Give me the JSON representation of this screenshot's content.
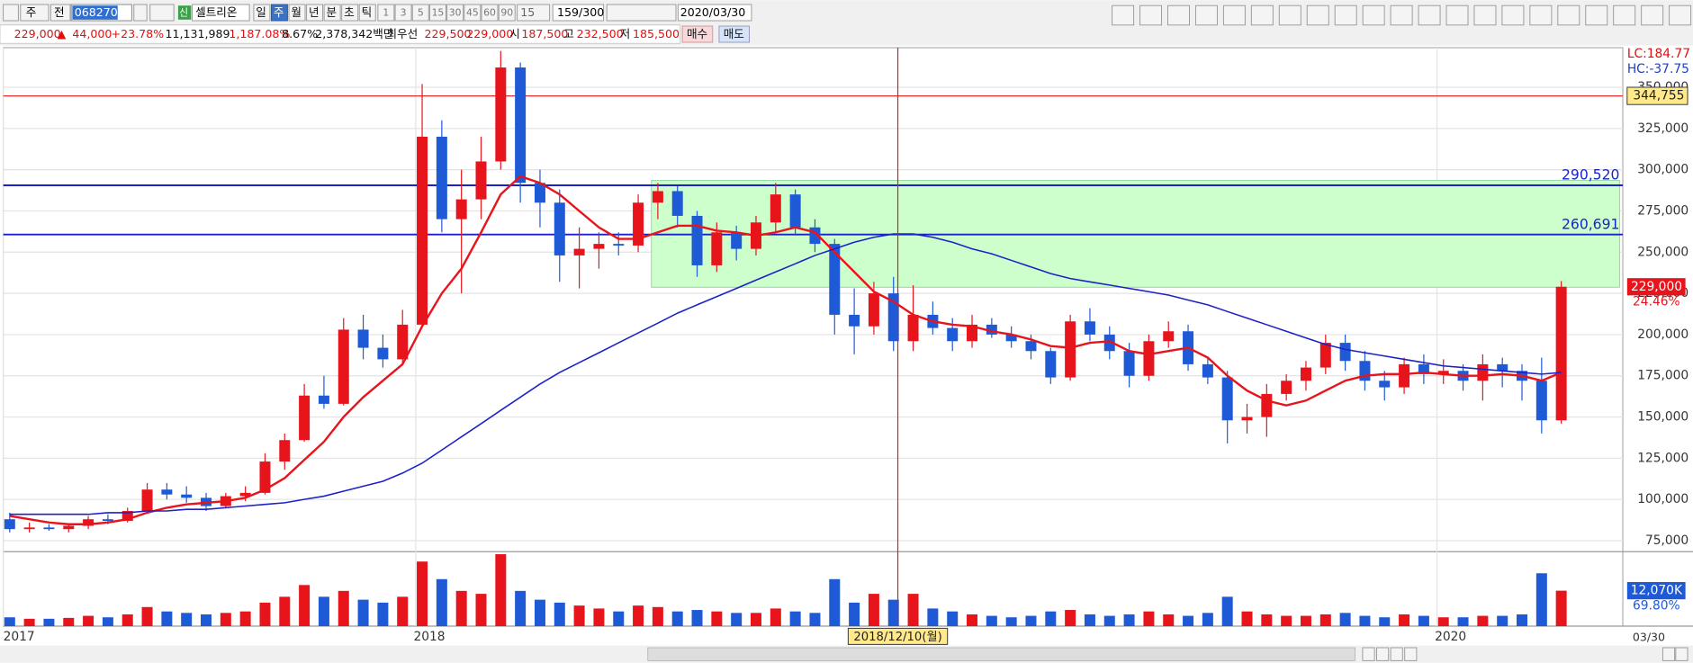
{
  "toolbar": {
    "market": "주",
    "mode": "전",
    "code": "068270",
    "badge": "신",
    "name": "셀트리온",
    "periods": [
      "일",
      "주",
      "월",
      "년",
      "분",
      "초",
      "틱"
    ],
    "intervals": [
      "1",
      "3",
      "5",
      "15",
      "30",
      "45",
      "60",
      "90"
    ],
    "interval_value": "15",
    "count": "159",
    "count_max": "/300",
    "date": "2020/03/30"
  },
  "quote": {
    "price": "229,000",
    "arrow": "▲",
    "change": "44,000",
    "change_rate": "+23.78%",
    "volume": "11,131,989",
    "volume_rate": "1,187.08%",
    "turnover": "8.67%",
    "amount": "2,378,342백만",
    "best_label": "최우선",
    "ask": "229,500",
    "bid": "229,000",
    "open_label": "시",
    "open": "187,500",
    "high_label": "고",
    "high": "232,500",
    "low_label": "저",
    "low": "185,500",
    "buy": "매수",
    "sell": "매도"
  },
  "chart_data": {
    "type": "candlestick",
    "up_color": "#e8141c",
    "down_color": "#1f5ad6",
    "categories": [
      "2017",
      null,
      null,
      null,
      null,
      null,
      null,
      null,
      null,
      null,
      null,
      null,
      null,
      null,
      null,
      null,
      null,
      null,
      null,
      null,
      null,
      "2018",
      null,
      null,
      null,
      null,
      null,
      null,
      null,
      null,
      null,
      null,
      null,
      null,
      null,
      null,
      null,
      null,
      null,
      null,
      null,
      null,
      null,
      null,
      null,
      null,
      null,
      null,
      null,
      null,
      null,
      null,
      null,
      null,
      null,
      null,
      null,
      null,
      null,
      null,
      null,
      null,
      null,
      null,
      null,
      null,
      null,
      null,
      null,
      null,
      null,
      null,
      null,
      "2020",
      null,
      null,
      null,
      null,
      null,
      null
    ],
    "candles": [
      [
        88000,
        92000,
        80000,
        82000
      ],
      [
        82000,
        86000,
        80000,
        83000
      ],
      [
        83000,
        85000,
        81000,
        82000
      ],
      [
        82000,
        85000,
        80000,
        84000
      ],
      [
        84000,
        90000,
        82000,
        88000
      ],
      [
        88000,
        91000,
        85000,
        87000
      ],
      [
        87000,
        95000,
        86000,
        93000
      ],
      [
        93000,
        110000,
        92000,
        106000
      ],
      [
        106000,
        110000,
        100000,
        103000
      ],
      [
        103000,
        108000,
        98000,
        101000
      ],
      [
        101000,
        104000,
        93000,
        96000
      ],
      [
        96000,
        104000,
        95000,
        102000
      ],
      [
        102000,
        108000,
        99000,
        104000
      ],
      [
        104000,
        128000,
        103000,
        123000
      ],
      [
        123000,
        140000,
        118000,
        136000
      ],
      [
        136000,
        170000,
        135000,
        163000
      ],
      [
        163000,
        175000,
        155000,
        158000
      ],
      [
        158000,
        210000,
        157000,
        203000
      ],
      [
        203000,
        212000,
        185000,
        192000
      ],
      [
        192000,
        200000,
        180000,
        185000
      ],
      [
        185000,
        215000,
        182000,
        206000
      ],
      [
        206000,
        352000,
        205000,
        320000
      ],
      [
        320000,
        330000,
        262000,
        270000
      ],
      [
        270000,
        300000,
        225000,
        282000
      ],
      [
        282000,
        320000,
        270000,
        305000
      ],
      [
        305000,
        372000,
        300000,
        362000
      ],
      [
        362000,
        365000,
        280000,
        292000
      ],
      [
        292000,
        300000,
        265000,
        280000
      ],
      [
        280000,
        288000,
        232000,
        248000
      ],
      [
        248000,
        265000,
        228000,
        252000
      ],
      [
        252000,
        262000,
        240000,
        255000
      ],
      [
        255000,
        262000,
        248000,
        254000
      ],
      [
        254000,
        285000,
        250000,
        280000
      ],
      [
        280000,
        292000,
        270000,
        287000
      ],
      [
        287000,
        290000,
        265000,
        272000
      ],
      [
        272000,
        275000,
        235000,
        242000
      ],
      [
        242000,
        268000,
        238000,
        262000
      ],
      [
        262000,
        266000,
        245000,
        252000
      ],
      [
        252000,
        272000,
        248000,
        268000
      ],
      [
        268000,
        292000,
        262000,
        285000
      ],
      [
        285000,
        288000,
        260000,
        265000
      ],
      [
        265000,
        270000,
        250000,
        255000
      ],
      [
        255000,
        258000,
        200000,
        212000
      ],
      [
        212000,
        228000,
        188000,
        205000
      ],
      [
        205000,
        232000,
        200000,
        225000
      ],
      [
        225000,
        235000,
        190000,
        196000
      ],
      [
        196000,
        230000,
        190000,
        212000
      ],
      [
        212000,
        220000,
        200000,
        204000
      ],
      [
        204000,
        210000,
        190000,
        196000
      ],
      [
        196000,
        212000,
        192000,
        206000
      ],
      [
        206000,
        210000,
        198000,
        200000
      ],
      [
        200000,
        205000,
        192000,
        196000
      ],
      [
        196000,
        200000,
        185000,
        190000
      ],
      [
        190000,
        192000,
        170000,
        174000
      ],
      [
        174000,
        212000,
        172000,
        208000
      ],
      [
        208000,
        216000,
        196000,
        200000
      ],
      [
        200000,
        205000,
        185000,
        190000
      ],
      [
        190000,
        195000,
        168000,
        175000
      ],
      [
        175000,
        200000,
        172000,
        196000
      ],
      [
        196000,
        208000,
        192000,
        202000
      ],
      [
        202000,
        206000,
        178000,
        182000
      ],
      [
        182000,
        186000,
        170000,
        174000
      ],
      [
        174000,
        178000,
        134000,
        148000
      ],
      [
        148000,
        158000,
        140000,
        150000
      ],
      [
        150000,
        170000,
        138000,
        164000
      ],
      [
        164000,
        176000,
        160000,
        172000
      ],
      [
        172000,
        184000,
        166000,
        180000
      ],
      [
        180000,
        200000,
        176000,
        195000
      ],
      [
        195000,
        200000,
        178000,
        184000
      ],
      [
        184000,
        190000,
        166000,
        172000
      ],
      [
        172000,
        178000,
        160000,
        168000
      ],
      [
        168000,
        186000,
        164000,
        182000
      ],
      [
        182000,
        188000,
        170000,
        176000
      ],
      [
        176000,
        185000,
        170000,
        178000
      ],
      [
        178000,
        182000,
        166000,
        172000
      ],
      [
        172000,
        188000,
        160000,
        182000
      ],
      [
        182000,
        186000,
        168000,
        178000
      ],
      [
        178000,
        182000,
        160000,
        172000
      ],
      [
        172000,
        186000,
        140000,
        148000
      ],
      [
        148000,
        232500,
        146000,
        229000
      ]
    ],
    "lines": [
      {
        "color": "#e8141c",
        "width": 2,
        "values": [
          90000,
          88000,
          86000,
          85000,
          85000,
          86000,
          88000,
          92000,
          95000,
          97000,
          98000,
          99000,
          101000,
          106000,
          113000,
          124000,
          135000,
          150000,
          162000,
          172000,
          182000,
          205000,
          225000,
          240000,
          262000,
          285000,
          296000,
          292000,
          285000,
          275000,
          265000,
          258000,
          258000,
          262000,
          266000,
          266000,
          263000,
          262000,
          260000,
          262000,
          265000,
          262000,
          250000,
          238000,
          226000,
          220000,
          212000,
          208000,
          206000,
          205000,
          202000,
          200000,
          197000,
          193000,
          192000,
          195000,
          196000,
          190000,
          188000,
          190000,
          192000,
          186000,
          175000,
          166000,
          160000,
          157000,
          160000,
          166000,
          172000,
          175000,
          176000,
          176000,
          177000,
          176000,
          175000,
          175000,
          176000,
          175000,
          172000,
          177000
        ]
      },
      {
        "color": "#1c22c8",
        "width": 1.3,
        "values": [
          91000,
          91000,
          91000,
          91000,
          91000,
          92000,
          92000,
          93000,
          93000,
          94000,
          94000,
          95000,
          96000,
          97000,
          98000,
          100000,
          102000,
          105000,
          108000,
          111000,
          116000,
          122000,
          130000,
          138000,
          146000,
          154000,
          162000,
          170000,
          177000,
          183000,
          189000,
          195000,
          201000,
          207000,
          213000,
          218000,
          223000,
          228000,
          233000,
          238000,
          243000,
          248000,
          252000,
          256000,
          259000,
          261000,
          261000,
          259000,
          256000,
          252000,
          249000,
          245000,
          241000,
          237000,
          234000,
          232000,
          230000,
          228000,
          226000,
          224000,
          221000,
          218000,
          214000,
          210000,
          206000,
          202000,
          198000,
          194000,
          191000,
          189000,
          187000,
          185000,
          183000,
          181000,
          180000,
          179000,
          178000,
          177000,
          176000,
          177000
        ]
      }
    ],
    "ylim": [
      69000,
      374000
    ],
    "yticks": [
      {
        "value": 75000,
        "label": "75,000"
      },
      {
        "value": 100000,
        "label": "100,000"
      },
      {
        "value": 125000,
        "label": "125,000"
      },
      {
        "value": 150000,
        "label": "150,000"
      },
      {
        "value": 175000,
        "label": "175,000"
      },
      {
        "value": 200000,
        "label": "200,000"
      },
      {
        "value": 225000,
        "label": "225,000"
      },
      {
        "value": 250000,
        "label": "250,000"
      },
      {
        "value": 275000,
        "label": "275,000"
      },
      {
        "value": 300000,
        "label": "300,000"
      },
      {
        "value": 325000,
        "label": "325,000"
      },
      {
        "value": 350000,
        "label": "350,000"
      }
    ],
    "grid": true,
    "zone": {
      "from": 33,
      "range": [
        228700,
        293500
      ],
      "color": "#ccffcc"
    },
    "hlines": [
      {
        "value": 344755,
        "label": "344,755",
        "color": "#e03030",
        "style": "box"
      },
      {
        "value": 290520,
        "label": "290,520",
        "color": "#1c22c8",
        "style": "text"
      },
      {
        "value": 260691,
        "label": "260,691",
        "color": "#1c22c8",
        "style": "text"
      }
    ],
    "last_price": {
      "value": 229000,
      "label": "229,000"
    },
    "change_label": "24.46%",
    "lc_label": "LC:184.77",
    "hc_label": "HC:-37.75",
    "crosshair": {
      "index": 45,
      "label": "2018/12/10(월)"
    },
    "end_label": "03/30",
    "volume": {
      "ylim": [
        0,
        25000
      ],
      "values": [
        3000,
        2500,
        2500,
        2800,
        3500,
        3000,
        4000,
        6500,
        5000,
        4500,
        4000,
        4500,
        5000,
        8000,
        10000,
        14000,
        10000,
        12000,
        9000,
        8000,
        10000,
        22000,
        16000,
        12000,
        11000,
        24500,
        12000,
        9000,
        8000,
        7000,
        6000,
        5000,
        7000,
        6500,
        5000,
        5500,
        5000,
        4500,
        4500,
        6000,
        5000,
        4500,
        16000,
        8000,
        11000,
        9000,
        11000,
        6000,
        5000,
        4000,
        3500,
        3000,
        3500,
        5000,
        5500,
        4000,
        3500,
        4000,
        5000,
        4000,
        3500,
        4500,
        10000,
        5000,
        4000,
        3500,
        3500,
        4000,
        4500,
        3500,
        3000,
        4000,
        3500,
        3000,
        3000,
        3500,
        3500,
        4000,
        18000,
        12070
      ],
      "last_label": "12,070K",
      "ratio_label": "69.80%"
    }
  }
}
